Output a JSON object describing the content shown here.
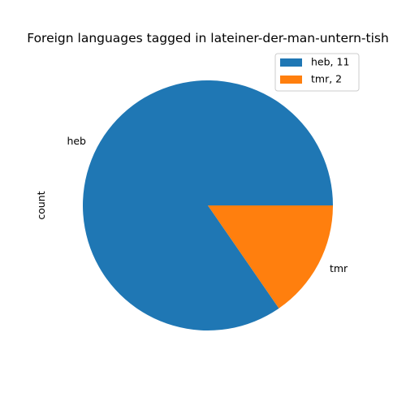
{
  "chart_data": {
    "type": "pie",
    "title": "Foreign languages tagged in lateiner-der-man-untern-tish",
    "ylabel": "count",
    "categories": [
      "heb",
      "tmr"
    ],
    "values": [
      11,
      2
    ],
    "legend_labels": [
      "heb, 11",
      "tmr, 2"
    ],
    "legend_position": "top-right",
    "colors": [
      "#1f77b4",
      "#ff7f0e"
    ]
  }
}
